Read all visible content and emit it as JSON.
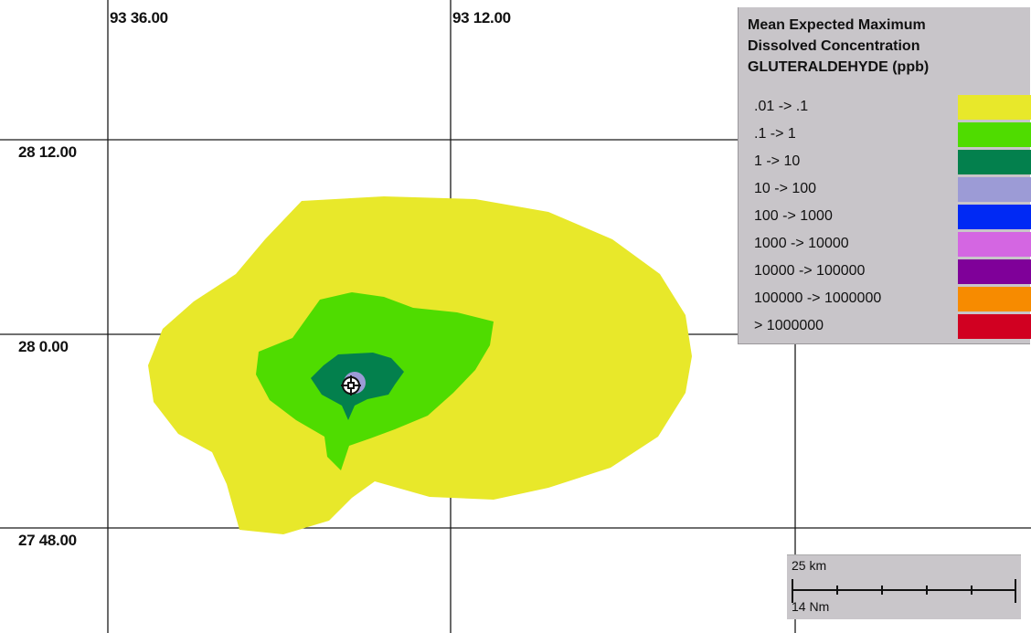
{
  "map": {
    "longitude_labels": [
      "93 36.00",
      "93 12.00"
    ],
    "latitude_labels": [
      "28 12.00",
      "28 0.00",
      "27 48.00"
    ],
    "site_marker_icon": "platform-crosshair-icon"
  },
  "legend": {
    "title_lines": [
      "Mean Expected Maximum",
      "Dissolved Concentration",
      "GLUTERALDEHYDE (ppb)"
    ],
    "entries": [
      {
        "label": ".01 ->  .1",
        "color": "#e8e82a"
      },
      {
        "label": ".1 ->  1",
        "color": "#4fdc00"
      },
      {
        "label": "1 ->  10",
        "color": "#03804d"
      },
      {
        "label": "10 ->  100",
        "color": "#9c9bd6"
      },
      {
        "label": "100 ->  1000",
        "color": "#0029f4"
      },
      {
        "label": "1000 ->  10000",
        "color": "#d466e2"
      },
      {
        "label": "10000 ->  100000",
        "color": "#7f0099"
      },
      {
        "label": "100000 ->  1000000",
        "color": "#f78b00"
      },
      {
        "label": ">  1000000",
        "color": "#d10021"
      }
    ]
  },
  "scale": {
    "km_label": "25 km",
    "nm_label": "14 Nm"
  }
}
